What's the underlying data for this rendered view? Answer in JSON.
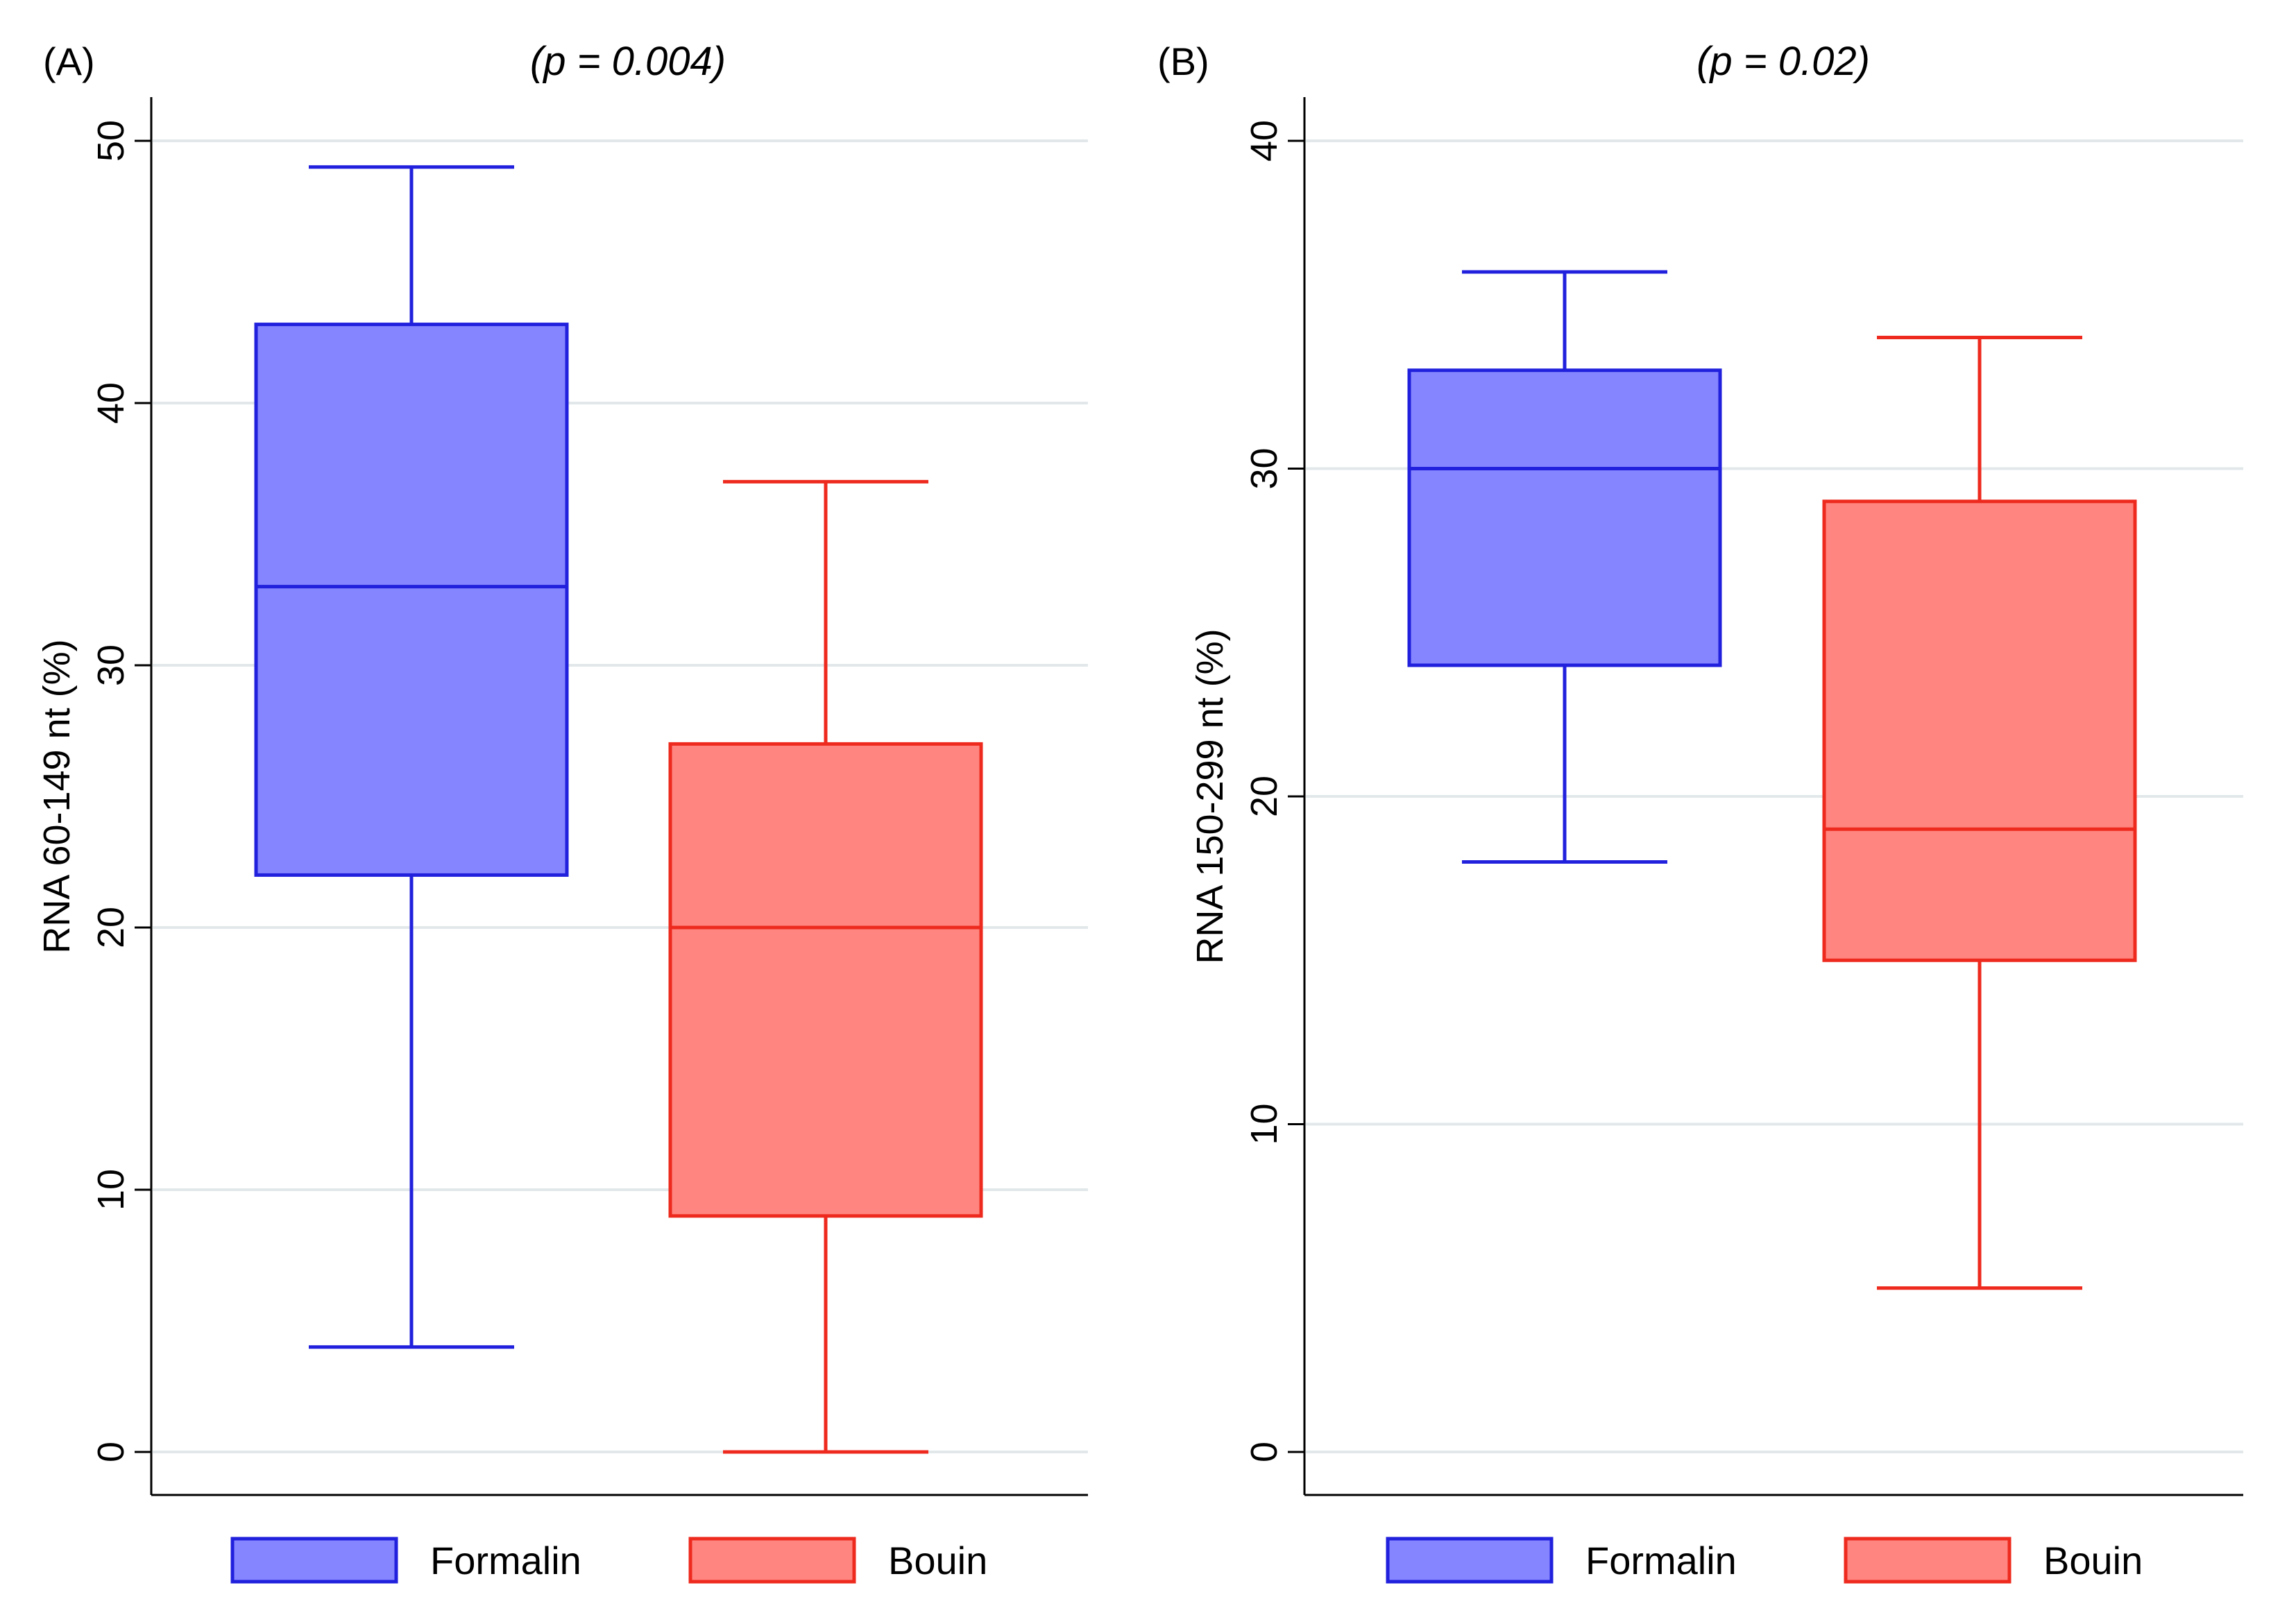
{
  "figure": {
    "panels": [
      {
        "label": "(A)",
        "pvalue": "(p = 0.004)"
      },
      {
        "label": "(B)",
        "pvalue": "(p = 0.02)"
      }
    ]
  },
  "chart_data": [
    {
      "type": "box",
      "panel": "(A)",
      "title": "(p = 0.004)",
      "xlabel": "",
      "ylabel": "RNA 60-149 nt (%)",
      "ylim": [
        0,
        50
      ],
      "yticks": [
        0,
        10,
        20,
        30,
        40,
        50
      ],
      "grid": true,
      "legend": [
        "Formalin",
        "Bouin"
      ],
      "legend_position": "bottom",
      "series": [
        {
          "name": "Formalin",
          "fill": "#8585ff",
          "stroke": "#2020dd",
          "whisker_low": 4,
          "q1": 22,
          "median": 33,
          "q3": 43,
          "whisker_high": 49
        },
        {
          "name": "Bouin",
          "fill": "#ff8680",
          "stroke": "#ee2a1e",
          "whisker_low": 0,
          "q1": 9,
          "median": 20,
          "q3": 27,
          "whisker_high": 37
        }
      ]
    },
    {
      "type": "box",
      "panel": "(B)",
      "title": "(p = 0.02)",
      "xlabel": "",
      "ylabel": "RNA 150-299 nt (%)",
      "ylim": [
        0,
        40
      ],
      "yticks": [
        0,
        10,
        20,
        30,
        40
      ],
      "grid": true,
      "legend": [
        "Formalin",
        "Bouin"
      ],
      "legend_position": "bottom",
      "series": [
        {
          "name": "Formalin",
          "fill": "#8585ff",
          "stroke": "#2020dd",
          "whisker_low": 18,
          "q1": 24,
          "median": 30,
          "q3": 33,
          "whisker_high": 36
        },
        {
          "name": "Bouin",
          "fill": "#ff8680",
          "stroke": "#ee2a1e",
          "whisker_low": 5,
          "q1": 15,
          "median": 19,
          "q3": 29,
          "whisker_high": 34
        }
      ]
    }
  ]
}
